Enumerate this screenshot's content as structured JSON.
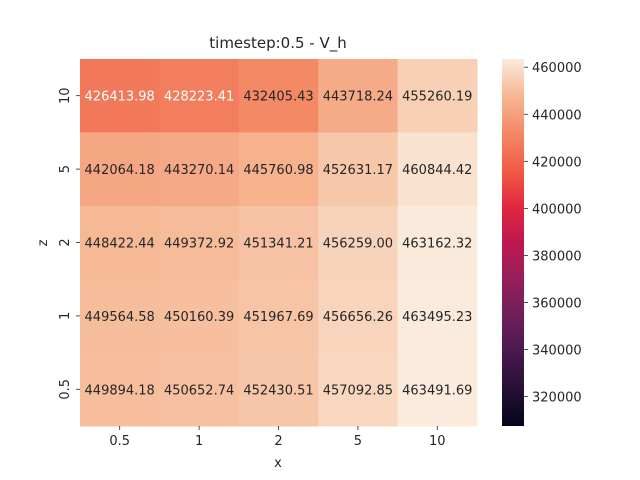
{
  "chart_data": {
    "type": "heatmap",
    "title": "timestep:0.5 - V_h",
    "xlabel": "x",
    "ylabel": "z",
    "x_categories": [
      "0.5",
      "1",
      "2",
      "5",
      "10"
    ],
    "y_categories": [
      "10",
      "5",
      "2",
      "1",
      "0.5"
    ],
    "values": [
      [
        426413.98,
        428223.41,
        432405.43,
        443718.24,
        455260.19
      ],
      [
        442064.18,
        443270.14,
        445760.98,
        452631.17,
        460844.42
      ],
      [
        448422.44,
        449372.92,
        451341.21,
        456259.0,
        463162.32
      ],
      [
        449564.58,
        450160.39,
        451967.69,
        456656.26,
        463495.23
      ],
      [
        449894.18,
        450652.74,
        452430.51,
        457092.85,
        463491.69
      ]
    ],
    "colorbar": {
      "colormap": "rocket",
      "vmin": 307500,
      "vmax": 463495.23,
      "ticks": [
        "320000",
        "340000",
        "360000",
        "380000",
        "400000",
        "420000",
        "440000",
        "460000"
      ]
    },
    "annotations": true
  }
}
